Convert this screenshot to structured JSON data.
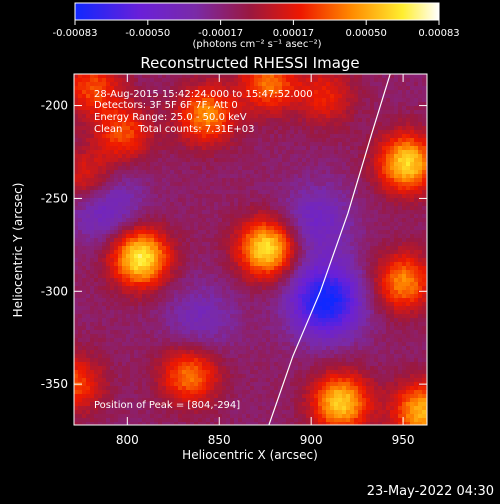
{
  "chart_data": {
    "type": "heatmap",
    "title": "Reconstructed RHESSI Image",
    "xlabel": "Heliocentric X (arcsec)",
    "ylabel": "Heliocentric Y (arcsec)",
    "xlim": [
      771,
      963
    ],
    "ylim": [
      -372,
      -183
    ],
    "x_ticks": [
      800,
      850,
      900,
      950
    ],
    "y_ticks": [
      -200,
      -250,
      -300,
      -350
    ],
    "colorbar": {
      "orientation": "horizontal",
      "position": "top",
      "range": [
        -0.00083,
        0.00083
      ],
      "ticks": [
        "-0.00083",
        "-0.00050",
        "-0.00017",
        "0.00017",
        "0.00050",
        "0.00083"
      ],
      "units_label": "(photons cm⁻² s⁻¹ asec⁻²)",
      "colormap": "rainbow-blue-purple-red-orange-yellow-white"
    },
    "annotations": [
      "28-Aug-2015 15:42:24.000 to 15:47:52.000",
      "Detectors: 3F 5F 6F 7F, Att 0",
      "Energy Range: 25.0 - 50.0 keV",
      "Clean     Total counts: 7.31E+03"
    ],
    "peak_label": "Position of Peak = [804,-294]",
    "peak": [
      804,
      -294
    ],
    "sources": [
      {
        "x": 807,
        "y": -282,
        "peak": 0.00083
      },
      {
        "x": 876,
        "y": -277,
        "peak": 0.0008
      },
      {
        "x": 952,
        "y": -231,
        "peak": 0.00075
      },
      {
        "x": 916,
        "y": -360,
        "peak": 0.00072
      },
      {
        "x": 960,
        "y": -365,
        "peak": 0.00065
      },
      {
        "x": 843,
        "y": -205,
        "peak": 0.00055
      },
      {
        "x": 834,
        "y": -345,
        "peak": 0.00052
      },
      {
        "x": 877,
        "y": -188,
        "peak": 0.00048
      },
      {
        "x": 950,
        "y": -295,
        "peak": 0.00055
      },
      {
        "x": 779,
        "y": -240,
        "peak": 0.00042
      },
      {
        "x": 798,
        "y": -215,
        "peak": 0.0004
      },
      {
        "x": 908,
        "y": -195,
        "peak": 0.0003
      },
      {
        "x": 771,
        "y": -350,
        "peak": 0.0004
      },
      {
        "x": 781,
        "y": -190,
        "peak": 0.0004
      },
      {
        "x": 908,
        "y": -305,
        "peak": -0.0008
      },
      {
        "x": 903,
        "y": -262,
        "peak": -0.00035
      },
      {
        "x": 787,
        "y": -252,
        "peak": -0.00045
      },
      {
        "x": 840,
        "y": -315,
        "peak": -0.00028
      }
    ],
    "limb_curve": [
      [
        877,
        -372
      ],
      [
        890,
        -335
      ],
      [
        905,
        -300
      ],
      [
        920,
        -258
      ],
      [
        933,
        -215
      ],
      [
        943,
        -183
      ]
    ],
    "timestamp": "23-May-2022 04:30"
  }
}
